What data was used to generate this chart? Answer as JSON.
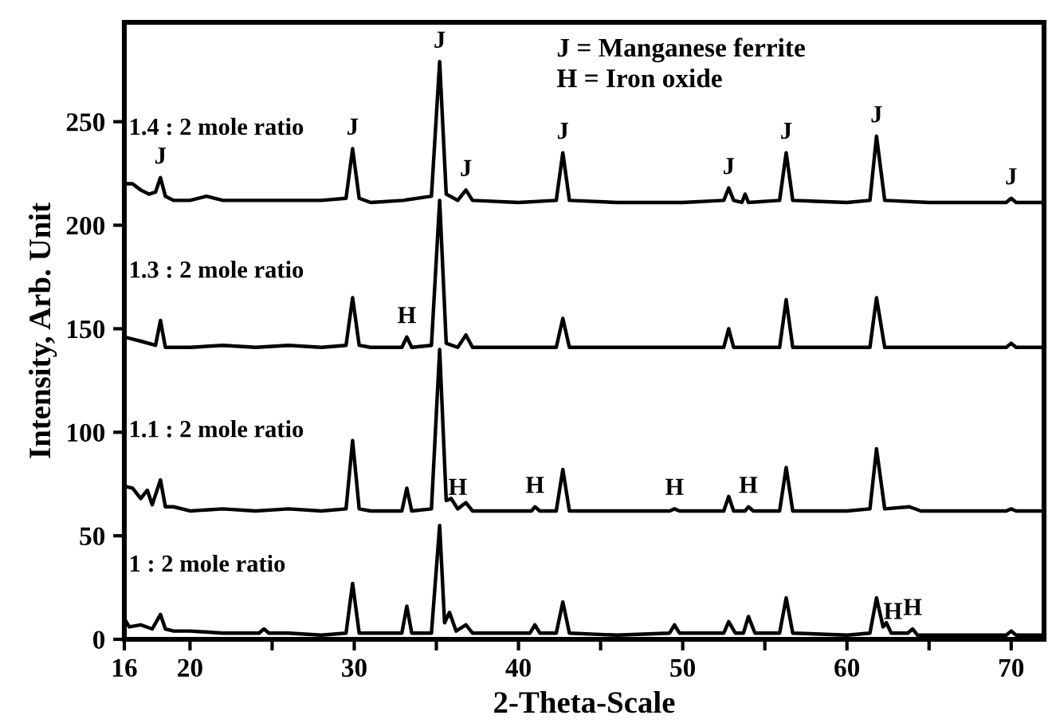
{
  "chart_data": {
    "type": "line",
    "xlabel": "2-Theta-Scale",
    "ylabel": "Intensity, Arb. Unit",
    "xlim": [
      16,
      72
    ],
    "ylim": [
      0,
      298
    ],
    "xticks": [
      16,
      20,
      {
        "value": 25,
        "label": null
      },
      30,
      {
        "value": 35,
        "label": null
      },
      40,
      {
        "value": 45,
        "label": null
      },
      50,
      {
        "value": 55,
        "label": null
      },
      60,
      {
        "value": 65,
        "label": null
      },
      70
    ],
    "yticks": [
      0,
      50,
      100,
      150,
      200,
      250
    ],
    "grid": false,
    "legend": false,
    "marker": "none",
    "line_style": "solid",
    "series": [
      {
        "name": "1.4 : 2 mole ratio",
        "color": "#000000",
        "x": [
          16,
          16.5,
          17,
          17.5,
          17.9,
          18.2,
          18.5,
          19,
          20,
          21,
          22,
          24,
          26,
          28,
          29.5,
          29.9,
          30.3,
          31,
          33,
          34.7,
          35.2,
          35.6,
          36.3,
          36.8,
          37.2,
          40,
          42.3,
          42.7,
          43.1,
          46,
          50,
          52.5,
          52.8,
          53.1,
          53.6,
          53.8,
          54,
          55.9,
          56.3,
          56.7,
          60,
          61.4,
          61.8,
          62.3,
          65,
          69.7,
          70,
          70.3,
          72
        ],
        "values": [
          220,
          220,
          217,
          215,
          216,
          223,
          214,
          212,
          212,
          214,
          212,
          212,
          212,
          212,
          213,
          237,
          213,
          211,
          212,
          214,
          279,
          215,
          212,
          217,
          212,
          211,
          212,
          235,
          212,
          211,
          211,
          212,
          218,
          212,
          211,
          215,
          211,
          212,
          235,
          212,
          211,
          212,
          243,
          212,
          211,
          211,
          213,
          211,
          211
        ]
      },
      {
        "name": "1.3 : 2 mole ratio",
        "color": "#000000",
        "x": [
          16,
          16.5,
          17,
          17.9,
          18.2,
          18.5,
          20,
          22,
          24,
          26,
          28,
          29.5,
          29.9,
          30.3,
          31,
          32.9,
          33.2,
          33.5,
          34.7,
          35.2,
          35.6,
          36.3,
          36.8,
          37.2,
          40,
          42.3,
          42.7,
          43.1,
          46,
          50,
          52.5,
          52.8,
          53.1,
          55.9,
          56.3,
          56.7,
          60,
          61.4,
          61.8,
          62.3,
          65,
          69.7,
          70,
          70.3,
          72
        ],
        "values": [
          146,
          145,
          144,
          142,
          154,
          141,
          141,
          142,
          141,
          142,
          141,
          142,
          165,
          142,
          141,
          141,
          146,
          141,
          142,
          212,
          143,
          141,
          147,
          141,
          141,
          141,
          155,
          141,
          141,
          141,
          141,
          150,
          141,
          141,
          164,
          141,
          141,
          141,
          165,
          141,
          141,
          141,
          143,
          141,
          141
        ]
      },
      {
        "name": "1.1 : 2 mole ratio",
        "color": "#000000",
        "x": [
          16,
          16.5,
          17,
          17.4,
          17.7,
          18.2,
          18.5,
          19,
          20,
          22,
          24,
          26,
          28,
          29.5,
          29.9,
          30.3,
          31,
          32.9,
          33.2,
          33.5,
          34.7,
          35.2,
          35.6,
          35.9,
          36.3,
          36.8,
          37.2,
          40,
          40.8,
          41,
          41.3,
          42.3,
          42.7,
          43.1,
          46,
          49.2,
          49.5,
          49.8,
          52.5,
          52.8,
          53.1,
          53.8,
          54,
          54.3,
          55.9,
          56.3,
          56.7,
          60,
          61.4,
          61.8,
          62.3,
          63.8,
          64.5,
          69.7,
          70,
          70.3,
          72
        ],
        "values": [
          74,
          73,
          68,
          72,
          65,
          77,
          64,
          64,
          62,
          63,
          62,
          63,
          62,
          63,
          96,
          63,
          62,
          62,
          73,
          62,
          63,
          140,
          67,
          68,
          63,
          66,
          62,
          62,
          62,
          64,
          62,
          62,
          82,
          62,
          62,
          62,
          63,
          62,
          62,
          69,
          62,
          62,
          64,
          62,
          62,
          83,
          62,
          62,
          63,
          92,
          63,
          64,
          62,
          62,
          63,
          62,
          62
        ]
      },
      {
        "name": "1 : 2 mole ratio",
        "color": "#000000",
        "x": [
          16,
          16.3,
          17,
          17.7,
          18.2,
          18.5,
          19,
          20,
          22,
          24.2,
          24.5,
          24.8,
          26,
          28,
          29.5,
          29.9,
          30.3,
          31,
          32.9,
          33.2,
          33.5,
          34.7,
          35.2,
          35.5,
          35.8,
          36.2,
          36.8,
          37.2,
          40.7,
          41,
          41.3,
          42.3,
          42.7,
          43.1,
          46,
          49.2,
          49.5,
          49.8,
          52.5,
          52.8,
          53.2,
          53.7,
          54,
          54.4,
          55.9,
          56.3,
          56.7,
          60,
          61.4,
          61.8,
          62.2,
          62.4,
          62.7,
          63.7,
          64,
          64.3,
          69.7,
          70,
          70.3,
          72
        ],
        "values": [
          10,
          6,
          7,
          5,
          12,
          5,
          4,
          4,
          3,
          3,
          5,
          3,
          3,
          2,
          3,
          27,
          3,
          3,
          3,
          16,
          3,
          3,
          55,
          8,
          13,
          4,
          7,
          3,
          3,
          7,
          3,
          3,
          18,
          3,
          2,
          3,
          7,
          3,
          3,
          8.5,
          3,
          3,
          11,
          3,
          3,
          20,
          3,
          2,
          3,
          20,
          6,
          8,
          3,
          3,
          5,
          2,
          2,
          4,
          2,
          2
        ]
      }
    ],
    "annotations": [
      "J = Manganese ferrite",
      "H = Iron oxide",
      {
        "text": "J",
        "x": 18.2,
        "y": 223
      },
      {
        "text": "J",
        "x": 29.9,
        "y": 237
      },
      {
        "text": "J",
        "x": 35.2,
        "y": 279
      },
      {
        "text": "J",
        "x": 36.8,
        "y": 217
      },
      {
        "text": "J",
        "x": 42.7,
        "y": 235
      },
      {
        "text": "J",
        "x": 52.8,
        "y": 218
      },
      {
        "text": "J",
        "x": 56.3,
        "y": 235
      },
      {
        "text": "J",
        "x": 61.8,
        "y": 243
      },
      {
        "text": "J",
        "x": 70,
        "y": 213
      },
      {
        "text": "H",
        "x": 33.2,
        "y": 146
      },
      {
        "text": "H",
        "x": 36.3,
        "y": 63
      },
      {
        "text": "H",
        "x": 41,
        "y": 64
      },
      {
        "text": "H",
        "x": 49.5,
        "y": 63
      },
      {
        "text": "H",
        "x": 54,
        "y": 64
      },
      {
        "text": "H",
        "x": 62.8,
        "y": 3
      },
      {
        "text": "H",
        "x": 64,
        "y": 5
      }
    ]
  }
}
